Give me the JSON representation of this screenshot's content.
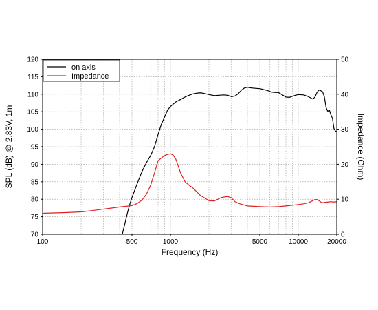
{
  "chart_data": {
    "type": "line",
    "xlabel": "Frequency (Hz)",
    "ylabel": "SPL (dB) @ 2.83V, 1m",
    "y2label": "Impedance (Ohm)",
    "xscale": "log",
    "xlim": [
      100,
      20000
    ],
    "ylim": [
      70,
      120
    ],
    "y2lim": [
      0,
      50
    ],
    "grid": true,
    "legend_position": "top-left",
    "x_ticks": [
      100,
      500,
      1000,
      5000,
      10000,
      20000
    ],
    "x_tick_labels": [
      "100",
      "500",
      "1000",
      "5000",
      "10000",
      "20000"
    ],
    "y_ticks": [
      70,
      75,
      80,
      85,
      90,
      95,
      100,
      105,
      110,
      115,
      120
    ],
    "y_tick_labels": [
      "70",
      "75",
      "80",
      "85",
      "90",
      "95",
      "100",
      "105",
      "110",
      "115",
      "120"
    ],
    "y2_ticks": [
      0,
      10,
      20,
      30,
      40,
      50
    ],
    "y2_tick_labels": [
      "0",
      "10",
      "20",
      "30",
      "40",
      "50"
    ],
    "series": [
      {
        "name": "on axis",
        "color": "#000000",
        "axis": "left",
        "x": [
          420,
          440,
          460,
          480,
          500,
          550,
          600,
          650,
          700,
          750,
          800,
          850,
          900,
          950,
          1000,
          1100,
          1200,
          1300,
          1400,
          1500,
          1600,
          1700,
          1800,
          1900,
          2000,
          2200,
          2400,
          2600,
          2800,
          3000,
          3200,
          3400,
          3600,
          3800,
          4000,
          4300,
          4600,
          5000,
          5400,
          5800,
          6200,
          6600,
          7000,
          7500,
          8000,
          8500,
          9000,
          9500,
          10000,
          11000,
          12000,
          13000,
          13500,
          14000,
          14500,
          15000,
          15500,
          16000,
          16500,
          17000,
          17500,
          18000,
          18500,
          19000,
          19500,
          20000
        ],
        "y": [
          70,
          73,
          76,
          78.5,
          80.5,
          84.5,
          88,
          90.5,
          92.5,
          95,
          98.5,
          101.5,
          103.5,
          105.5,
          106.5,
          107.8,
          108.5,
          109.2,
          109.7,
          110.1,
          110.3,
          110.4,
          110.3,
          110.1,
          109.9,
          109.6,
          109.7,
          109.8,
          109.7,
          109.3,
          109.5,
          110.2,
          111.2,
          111.8,
          112,
          111.8,
          111.7,
          111.6,
          111.3,
          111,
          110.6,
          110.5,
          110.5,
          109.8,
          109.2,
          109.1,
          109.4,
          109.7,
          109.9,
          109.8,
          109.3,
          108.6,
          109.2,
          110.5,
          111.2,
          111,
          110.7,
          109.2,
          106.2,
          105.1,
          105.5,
          104.1,
          103.1,
          100.2,
          99.5,
          99.2
        ]
      },
      {
        "name": "Impedance",
        "color": "#e02020",
        "axis": "right",
        "x": [
          100,
          150,
          200,
          250,
          300,
          350,
          400,
          450,
          500,
          550,
          600,
          650,
          700,
          750,
          800,
          850,
          900,
          950,
          1000,
          1050,
          1100,
          1150,
          1200,
          1300,
          1400,
          1500,
          1700,
          2000,
          2200,
          2500,
          2800,
          3000,
          3200,
          3500,
          4000,
          5000,
          6000,
          7000,
          8000,
          9000,
          10000,
          11000,
          12000,
          13000,
          13500,
          14000,
          14500,
          15000,
          15500,
          16000,
          17000,
          18000,
          19000,
          20000
        ],
        "y": [
          6,
          6.2,
          6.4,
          6.8,
          7.2,
          7.5,
          7.8,
          8,
          8.2,
          8.8,
          9.8,
          11.5,
          14,
          17.5,
          21,
          21.8,
          22.5,
          22.8,
          23,
          22.6,
          21.5,
          19.5,
          17.5,
          15,
          14,
          13.2,
          11.2,
          9.6,
          9.5,
          10.5,
          10.8,
          10.4,
          9.3,
          8.7,
          8.1,
          7.9,
          7.8,
          7.9,
          8.1,
          8.3,
          8.5,
          8.7,
          9.0,
          9.6,
          9.9,
          9.9,
          9.6,
          9.2,
          9.0,
          9.1,
          9.2,
          9.3,
          9.2,
          9.3
        ]
      }
    ]
  }
}
